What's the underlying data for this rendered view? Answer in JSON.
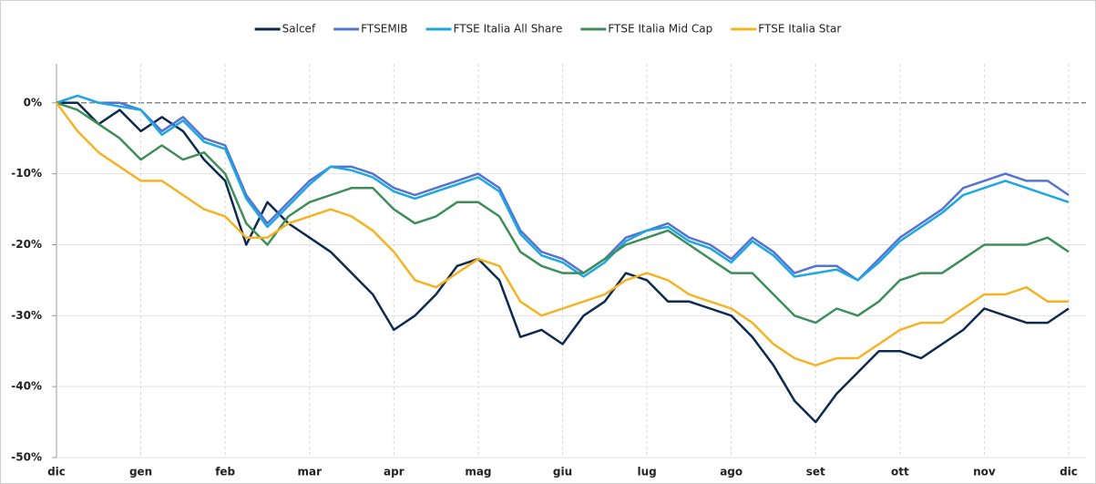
{
  "chart_data": {
    "type": "line",
    "categories": [
      "dic",
      null,
      null,
      null,
      "gen",
      null,
      null,
      null,
      "feb",
      null,
      null,
      null,
      "mar",
      null,
      null,
      null,
      "apr",
      null,
      null,
      null,
      "mag",
      null,
      null,
      null,
      "giu",
      null,
      null,
      null,
      "lug",
      null,
      null,
      null,
      "ago",
      null,
      null,
      null,
      "set",
      null,
      null,
      null,
      "ott",
      null,
      null,
      null,
      "nov",
      null,
      null,
      null,
      "dic"
    ],
    "series": [
      {
        "name": "Salcef",
        "color": "#0d2a4f",
        "values": [
          0,
          0,
          -3,
          -1,
          -4,
          -2,
          -4,
          -8,
          -11,
          -20,
          -14,
          -17,
          -19,
          -21,
          -24,
          -27,
          -32,
          -30,
          -27,
          -23,
          -22,
          -25,
          -33,
          -32,
          -34,
          -30,
          -28,
          -24,
          -25,
          -28,
          -28,
          -29,
          -30,
          -33,
          -37,
          -42,
          -45,
          -41,
          -38,
          -35,
          -35,
          -36,
          -34,
          -32,
          -29,
          -30,
          -31,
          -31,
          -29
        ]
      },
      {
        "name": "FTSEMIB",
        "color": "#5574cf",
        "values": [
          0,
          1,
          0,
          0,
          -1,
          -4,
          -2,
          -5,
          -6,
          -13,
          -17,
          -14,
          -11,
          -9,
          -9,
          -10,
          -12,
          -13,
          -12,
          -11,
          -10,
          -12,
          -18,
          -21,
          -22,
          -24,
          -22,
          -19,
          -18,
          -17,
          -19,
          -20,
          -22,
          -19,
          -21,
          -24,
          -23,
          -23,
          -25,
          -22,
          -19,
          -17,
          -15,
          -12,
          -11,
          -10,
          -11,
          -11,
          -13
        ]
      },
      {
        "name": "FTSE Italia All Share",
        "color": "#1ca7e4",
        "values": [
          0,
          1,
          0,
          -0.5,
          -1,
          -4.5,
          -2.5,
          -5.5,
          -6.5,
          -13.5,
          -17.5,
          -14.5,
          -11.5,
          -9,
          -9.5,
          -10.5,
          -12.5,
          -13.5,
          -12.5,
          -11.5,
          -10.5,
          -12.5,
          -18.5,
          -21.5,
          -22.5,
          -24.5,
          -22.5,
          -19.5,
          -18,
          -17.5,
          -19.5,
          -20.5,
          -22.5,
          -19.5,
          -21.5,
          -24.5,
          -24,
          -23.5,
          -25,
          -22.5,
          -19.5,
          -17.5,
          -15.5,
          -13,
          -12,
          -11,
          -12,
          -13,
          -14
        ]
      },
      {
        "name": "FTSE Italia Mid Cap",
        "color": "#3e8e5a",
        "values": [
          0,
          -1,
          -3,
          -5,
          -8,
          -6,
          -8,
          -7,
          -10,
          -17,
          -20,
          -16,
          -14,
          -13,
          -12,
          -12,
          -15,
          -17,
          -16,
          -14,
          -14,
          -16,
          -21,
          -23,
          -24,
          -24,
          -22,
          -20,
          -19,
          -18,
          -20,
          -22,
          -24,
          -24,
          -27,
          -30,
          -31,
          -29,
          -30,
          -28,
          -25,
          -24,
          -24,
          -22,
          -20,
          -20,
          -20,
          -19,
          -21
        ]
      },
      {
        "name": "FTSE Italia Star",
        "color": "#f5b324",
        "values": [
          0,
          -4,
          -7,
          -9,
          -11,
          -11,
          -13,
          -15,
          -16,
          -19,
          -19,
          -17,
          -16,
          -15,
          -16,
          -18,
          -21,
          -25,
          -26,
          -24,
          -22,
          -23,
          -28,
          -30,
          -29,
          -28,
          -27,
          -25,
          -24,
          -25,
          -27,
          -28,
          -29,
          -31,
          -34,
          -36,
          -37,
          -36,
          -36,
          -34,
          -32,
          -31,
          -31,
          -29,
          -27,
          -27,
          -26,
          -28,
          -28
        ]
      }
    ],
    "ylim": [
      -50,
      5.5
    ],
    "yticks": [
      {
        "value": 0,
        "label": "0%"
      },
      {
        "value": -10,
        "label": "-10%"
      },
      {
        "value": -20,
        "label": "-20%"
      },
      {
        "value": -30,
        "label": "-30%"
      },
      {
        "value": -40,
        "label": "-40%"
      },
      {
        "value": -50,
        "label": "-50%"
      }
    ],
    "grid": true,
    "legend": "top"
  }
}
